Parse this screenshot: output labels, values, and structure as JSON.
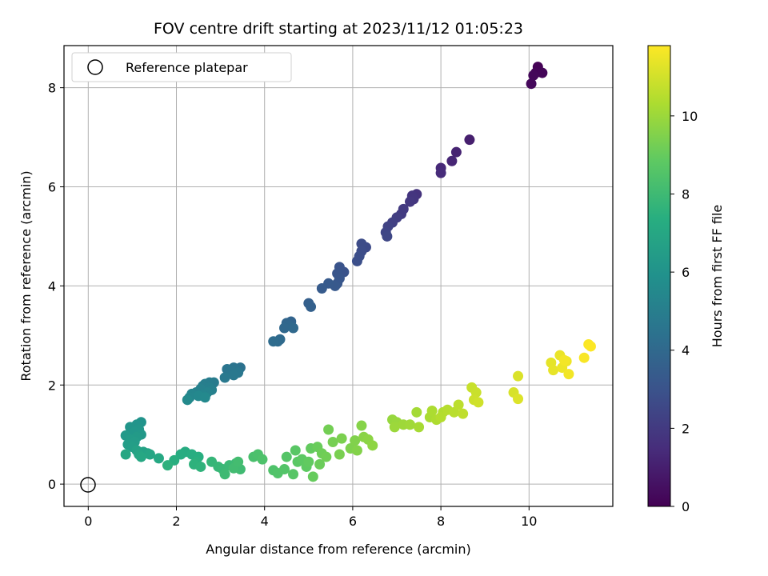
{
  "chart_data": {
    "type": "scatter",
    "title": "FOV centre drift starting at 2023/11/12 01:05:23",
    "xlabel": "Angular distance from reference (arcmin)",
    "ylabel": "Rotation from reference (arcmin)",
    "xlim": [
      -0.55,
      11.9
    ],
    "ylim": [
      -0.45,
      8.85
    ],
    "x_ticks": [
      "0",
      "2",
      "4",
      "6",
      "8",
      "10"
    ],
    "y_ticks": [
      "0",
      "2",
      "4",
      "6",
      "8"
    ],
    "grid": true,
    "legend": {
      "placement": "top-left",
      "entries": [
        "Reference platepar"
      ]
    },
    "reference": {
      "x": 0,
      "y": 0,
      "label": "Reference platepar"
    },
    "colorbar": {
      "label": "Hours from first FF file",
      "colormap": "viridis",
      "range": [
        0,
        11.8
      ],
      "ticks": [
        "0",
        "2",
        "4",
        "6",
        "8",
        "10"
      ]
    },
    "points": [
      [
        10.2,
        8.42,
        0.05
      ],
      [
        10.15,
        8.3,
        0.1
      ],
      [
        10.3,
        8.3,
        0.15
      ],
      [
        10.1,
        8.25,
        0.2
      ],
      [
        10.05,
        8.08,
        0.25
      ],
      [
        8.65,
        6.95,
        1.0
      ],
      [
        8.35,
        6.7,
        1.15
      ],
      [
        8.25,
        6.52,
        1.25
      ],
      [
        8.0,
        6.38,
        1.35
      ],
      [
        8.0,
        6.28,
        1.45
      ],
      [
        7.45,
        5.85,
        1.7
      ],
      [
        7.35,
        5.82,
        1.8
      ],
      [
        7.38,
        5.75,
        1.85
      ],
      [
        7.3,
        5.7,
        1.9
      ],
      [
        7.15,
        5.55,
        2.0
      ],
      [
        7.1,
        5.45,
        2.05
      ],
      [
        7.0,
        5.38,
        2.15
      ],
      [
        6.9,
        5.28,
        2.25
      ],
      [
        6.8,
        5.2,
        2.35
      ],
      [
        6.75,
        5.08,
        2.45
      ],
      [
        6.78,
        5.0,
        2.5
      ],
      [
        6.3,
        4.78,
        2.65
      ],
      [
        6.2,
        4.85,
        2.7
      ],
      [
        6.2,
        4.7,
        2.75
      ],
      [
        6.15,
        4.6,
        2.8
      ],
      [
        6.1,
        4.5,
        2.85
      ],
      [
        5.8,
        4.28,
        3.0
      ],
      [
        5.7,
        4.38,
        3.05
      ],
      [
        5.65,
        4.25,
        3.1
      ],
      [
        5.7,
        4.15,
        3.15
      ],
      [
        5.65,
        4.05,
        3.2
      ],
      [
        5.6,
        4.0,
        3.25
      ],
      [
        5.45,
        4.05,
        3.3
      ],
      [
        5.3,
        3.95,
        3.35
      ],
      [
        5.0,
        3.65,
        3.55
      ],
      [
        5.05,
        3.58,
        3.6
      ],
      [
        4.6,
        3.28,
        3.8
      ],
      [
        4.5,
        3.25,
        3.85
      ],
      [
        4.55,
        3.2,
        3.9
      ],
      [
        4.45,
        3.15,
        3.95
      ],
      [
        4.65,
        3.15,
        4.0
      ],
      [
        4.35,
        2.92,
        4.05
      ],
      [
        4.3,
        2.88,
        4.1
      ],
      [
        4.2,
        2.88,
        4.15
      ],
      [
        3.45,
        2.35,
        4.4
      ],
      [
        3.35,
        2.32,
        4.45
      ],
      [
        3.3,
        2.35,
        4.5
      ],
      [
        3.15,
        2.32,
        4.55
      ],
      [
        3.25,
        2.28,
        4.6
      ],
      [
        3.4,
        2.25,
        4.65
      ],
      [
        3.3,
        2.2,
        4.7
      ],
      [
        3.1,
        2.15,
        4.75
      ],
      [
        2.85,
        2.05,
        4.85
      ],
      [
        2.75,
        2.05,
        4.9
      ],
      [
        2.65,
        2.02,
        4.95
      ],
      [
        2.6,
        1.98,
        5.0
      ],
      [
        2.75,
        1.95,
        5.05
      ],
      [
        2.8,
        1.9,
        5.1
      ],
      [
        2.55,
        1.92,
        5.15
      ],
      [
        2.45,
        1.85,
        5.2
      ],
      [
        2.7,
        1.85,
        5.25
      ],
      [
        2.6,
        1.8,
        5.3
      ],
      [
        2.35,
        1.82,
        5.35
      ],
      [
        2.3,
        1.75,
        5.4
      ],
      [
        2.5,
        1.78,
        5.45
      ],
      [
        2.65,
        1.75,
        5.5
      ],
      [
        2.25,
        1.7,
        5.55
      ],
      [
        1.2,
        1.25,
        6.0
      ],
      [
        1.1,
        1.2,
        6.05
      ],
      [
        0.95,
        1.15,
        6.1
      ],
      [
        1.15,
        1.1,
        6.15
      ],
      [
        1.05,
        1.05,
        6.2
      ],
      [
        1.2,
        1.0,
        6.25
      ],
      [
        0.85,
        0.98,
        6.3
      ],
      [
        1.1,
        0.95,
        6.35
      ],
      [
        0.95,
        0.9,
        6.4
      ],
      [
        1.05,
        0.85,
        6.45
      ],
      [
        0.9,
        0.8,
        6.5
      ],
      [
        1.0,
        0.75,
        6.55
      ],
      [
        1.1,
        0.68,
        6.7
      ],
      [
        1.25,
        0.65,
        6.75
      ],
      [
        1.35,
        0.62,
        6.8
      ],
      [
        1.15,
        0.6,
        6.85
      ],
      [
        1.4,
        0.6,
        6.9
      ],
      [
        0.85,
        0.6,
        6.95
      ],
      [
        1.2,
        0.55,
        7.0
      ],
      [
        1.6,
        0.52,
        7.05
      ],
      [
        2.2,
        0.65,
        7.2
      ],
      [
        2.1,
        0.6,
        7.25
      ],
      [
        2.35,
        0.6,
        7.3
      ],
      [
        2.5,
        0.55,
        7.35
      ],
      [
        1.95,
        0.48,
        7.4
      ],
      [
        2.45,
        0.45,
        7.45
      ],
      [
        1.8,
        0.38,
        7.5
      ],
      [
        2.4,
        0.4,
        7.55
      ],
      [
        2.55,
        0.35,
        7.6
      ],
      [
        2.8,
        0.45,
        7.75
      ],
      [
        2.95,
        0.35,
        7.8
      ],
      [
        3.05,
        0.3,
        7.85
      ],
      [
        3.2,
        0.38,
        7.9
      ],
      [
        3.35,
        0.42,
        7.95
      ],
      [
        3.1,
        0.2,
        8.0
      ],
      [
        3.45,
        0.3,
        8.05
      ],
      [
        3.3,
        0.32,
        8.1
      ],
      [
        3.4,
        0.45,
        8.15
      ],
      [
        3.75,
        0.55,
        8.3
      ],
      [
        3.85,
        0.6,
        8.35
      ],
      [
        3.95,
        0.5,
        8.4
      ],
      [
        4.2,
        0.28,
        8.45
      ],
      [
        4.3,
        0.22,
        8.5
      ],
      [
        4.45,
        0.3,
        8.55
      ],
      [
        4.5,
        0.55,
        8.6
      ],
      [
        4.65,
        0.2,
        8.65
      ],
      [
        4.7,
        0.68,
        8.7
      ],
      [
        4.75,
        0.45,
        8.75
      ],
      [
        4.85,
        0.5,
        8.8
      ],
      [
        4.95,
        0.35,
        8.85
      ],
      [
        5.0,
        0.45,
        8.9
      ],
      [
        5.05,
        0.72,
        8.95
      ],
      [
        5.1,
        0.15,
        9.0
      ],
      [
        5.2,
        0.75,
        9.05
      ],
      [
        5.25,
        0.4,
        9.1
      ],
      [
        5.3,
        0.62,
        9.15
      ],
      [
        5.4,
        0.55,
        9.2
      ],
      [
        5.45,
        1.1,
        9.25
      ],
      [
        5.55,
        0.85,
        9.3
      ],
      [
        5.7,
        0.6,
        9.35
      ],
      [
        5.75,
        0.92,
        9.4
      ],
      [
        5.95,
        0.72,
        9.45
      ],
      [
        6.05,
        0.88,
        9.5
      ],
      [
        6.1,
        0.68,
        9.55
      ],
      [
        6.2,
        1.18,
        9.6
      ],
      [
        6.25,
        0.95,
        9.65
      ],
      [
        6.35,
        0.9,
        9.7
      ],
      [
        6.45,
        0.78,
        9.75
      ],
      [
        6.9,
        1.3,
        9.9
      ],
      [
        7.0,
        1.25,
        9.95
      ],
      [
        6.95,
        1.15,
        10.0
      ],
      [
        7.15,
        1.2,
        10.05
      ],
      [
        7.3,
        1.2,
        10.1
      ],
      [
        7.45,
        1.45,
        10.15
      ],
      [
        7.5,
        1.15,
        10.2
      ],
      [
        7.75,
        1.35,
        10.25
      ],
      [
        7.8,
        1.48,
        10.3
      ],
      [
        7.9,
        1.3,
        10.35
      ],
      [
        8.05,
        1.45,
        10.4
      ],
      [
        8.0,
        1.35,
        10.45
      ],
      [
        8.15,
        1.5,
        10.5
      ],
      [
        8.3,
        1.45,
        10.55
      ],
      [
        8.4,
        1.6,
        10.6
      ],
      [
        8.5,
        1.42,
        10.65
      ],
      [
        8.7,
        1.95,
        10.8
      ],
      [
        8.8,
        1.85,
        10.85
      ],
      [
        8.75,
        1.7,
        10.9
      ],
      [
        8.85,
        1.65,
        10.95
      ],
      [
        9.65,
        1.85,
        11.1
      ],
      [
        9.75,
        2.18,
        11.15
      ],
      [
        9.75,
        1.72,
        11.2
      ],
      [
        10.5,
        2.45,
        11.35
      ],
      [
        10.55,
        2.3,
        11.4
      ],
      [
        10.7,
        2.6,
        11.45
      ],
      [
        10.75,
        2.35,
        11.5
      ],
      [
        10.85,
        2.48,
        11.55
      ],
      [
        10.9,
        2.22,
        11.6
      ],
      [
        10.8,
        2.5,
        11.62
      ],
      [
        11.25,
        2.55,
        11.7
      ],
      [
        11.35,
        2.82,
        11.75
      ],
      [
        11.4,
        2.78,
        11.78
      ]
    ]
  }
}
